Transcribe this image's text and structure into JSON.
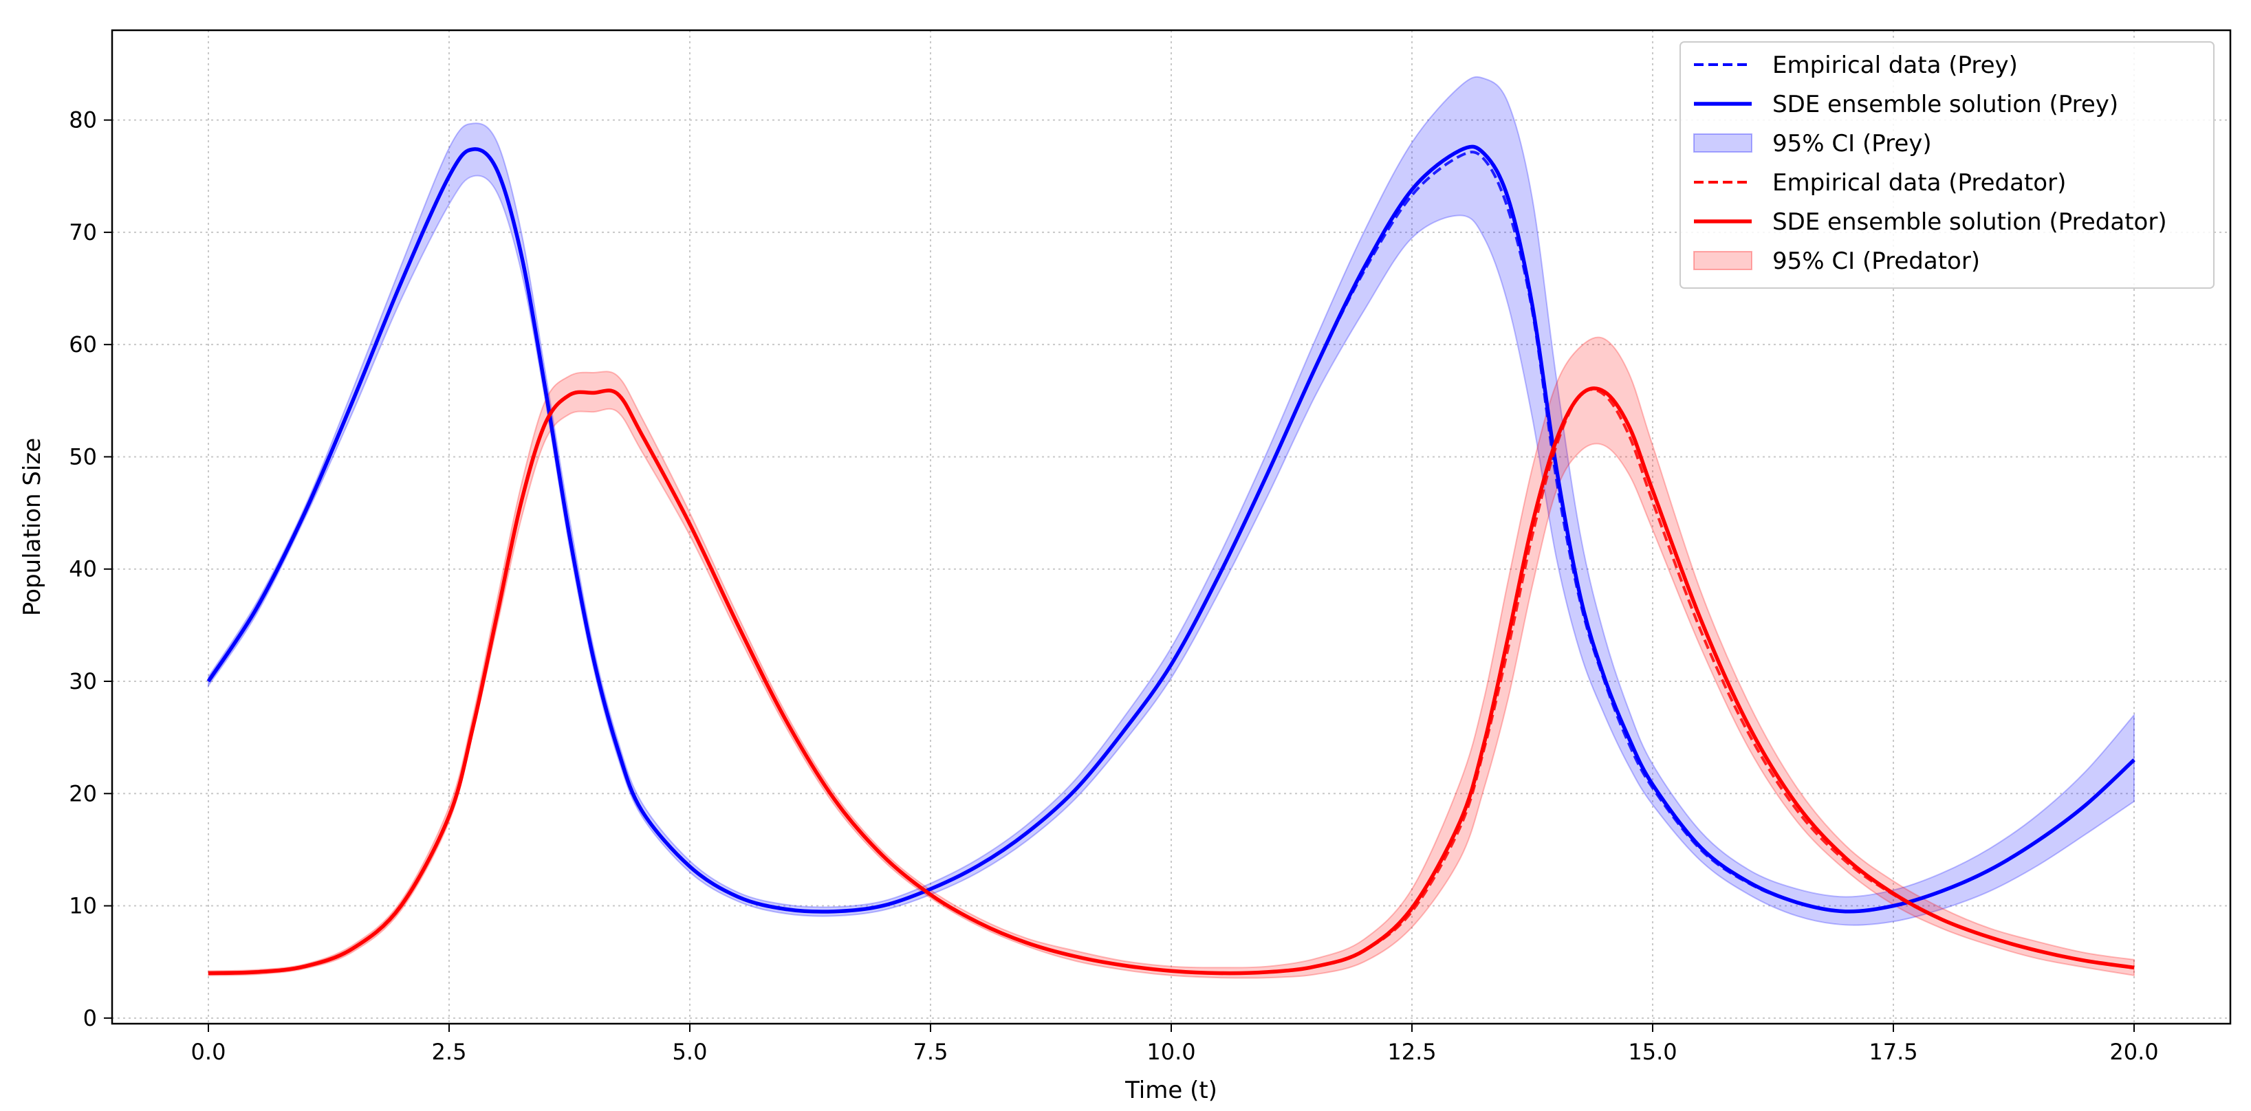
{
  "chart_data": {
    "type": "line",
    "title": "",
    "xlabel": "Time (t)",
    "ylabel": "Population Size",
    "xlim": [
      -1.0,
      21.0
    ],
    "ylim": [
      -0.5,
      88.0
    ],
    "xticks": [
      0.0,
      2.5,
      5.0,
      7.5,
      10.0,
      12.5,
      15.0,
      17.5,
      20.0
    ],
    "xtick_labels": [
      "0.0",
      "2.5",
      "5.0",
      "7.5",
      "10.0",
      "12.5",
      "15.0",
      "17.5",
      "20.0"
    ],
    "yticks": [
      0,
      10,
      20,
      30,
      40,
      50,
      60,
      70,
      80
    ],
    "ytick_labels": [
      "0",
      "10",
      "20",
      "30",
      "40",
      "50",
      "60",
      "70",
      "80"
    ],
    "grid": true,
    "legend_position": "top-right",
    "x": [
      0,
      0.5,
      1.0,
      1.5,
      2.0,
      2.5,
      2.75,
      3.0,
      3.25,
      3.5,
      3.75,
      4.0,
      4.25,
      4.5,
      5.0,
      5.5,
      6.0,
      6.5,
      7.0,
      7.5,
      8.0,
      8.5,
      9.0,
      9.5,
      10.0,
      10.5,
      11.0,
      11.5,
      12.0,
      12.5,
      13.0,
      13.25,
      13.5,
      13.75,
      14.0,
      14.25,
      14.5,
      14.75,
      15.0,
      15.5,
      16.0,
      16.5,
      17.0,
      17.5,
      18.0,
      18.5,
      19.0,
      19.5,
      20.0
    ],
    "series": [
      {
        "name": "Empirical data (Prey)",
        "kind": "line",
        "style": "dashed",
        "color": "#0000ff",
        "values": [
          30,
          36.5,
          45,
          55,
          65.5,
          75,
          77.4,
          75.5,
          68,
          56,
          43,
          32,
          24,
          18.5,
          13.5,
          10.8,
          9.7,
          9.5,
          10,
          11.5,
          13.6,
          16.5,
          20.3,
          25.5,
          31.5,
          39.5,
          48.5,
          58,
          66.5,
          73.3,
          76.8,
          76.5,
          72,
          63,
          48,
          37,
          30,
          24.5,
          20.5,
          15,
          12,
          10.3,
          9.5,
          10,
          11.3,
          13.2,
          15.8,
          19,
          23
        ]
      },
      {
        "name": "SDE ensemble solution (Prey)",
        "kind": "line",
        "style": "solid",
        "color": "#0000ff",
        "values": [
          30,
          36.5,
          45,
          55,
          65.5,
          75,
          77.4,
          75.5,
          68,
          56,
          43,
          32,
          24,
          18.5,
          13.5,
          10.8,
          9.7,
          9.5,
          10,
          11.5,
          13.6,
          16.5,
          20.3,
          25.5,
          31.5,
          39.5,
          48.5,
          58,
          66.8,
          73.8,
          77.3,
          77,
          73,
          63.5,
          49,
          37.5,
          30.3,
          25,
          20.8,
          15.2,
          12.1,
          10.3,
          9.5,
          10,
          11.3,
          13.2,
          15.8,
          19,
          23
        ]
      },
      {
        "name": "95% CI (Prey)",
        "kind": "band",
        "color": "#0000ff",
        "lower": [
          29.6,
          36,
          44.5,
          54,
          64,
          72.5,
          75,
          73.5,
          66.5,
          55,
          42,
          31.2,
          23.3,
          18,
          13,
          10.4,
          9.3,
          9.1,
          9.6,
          11,
          13,
          15.8,
          19.5,
          24.5,
          30.3,
          38,
          46.5,
          55.5,
          63,
          69.5,
          71.5,
          69.5,
          63.5,
          53.5,
          41,
          32.5,
          27,
          22.5,
          19,
          14,
          11,
          9.1,
          8.3,
          8.6,
          9.7,
          11.3,
          13.6,
          16.4,
          19.3
        ],
        "upper": [
          30.4,
          37,
          45.5,
          56,
          67,
          77.5,
          79.7,
          78,
          70,
          57.5,
          44.5,
          33,
          24.8,
          19.2,
          14,
          11.2,
          10.1,
          9.9,
          10.4,
          12,
          14.2,
          17.2,
          21.2,
          26.7,
          33,
          41.2,
          50.5,
          60.5,
          70,
          78,
          83,
          83.7,
          81.5,
          73,
          57,
          43,
          34,
          27.5,
          22.6,
          16.6,
          13.2,
          11.5,
          10.8,
          11.4,
          12.9,
          15.1,
          18.1,
          22,
          27
        ]
      },
      {
        "name": "Empirical data (Predator)",
        "kind": "line",
        "style": "dashed",
        "color": "#ff0000",
        "values": [
          4,
          4.1,
          4.6,
          6.2,
          10,
          18,
          26,
          36,
          46,
          53,
          55.5,
          55.7,
          55.6,
          52,
          44,
          35,
          26.5,
          19.5,
          14.5,
          11,
          8.5,
          6.7,
          5.5,
          4.7,
          4.2,
          4,
          4.1,
          4.6,
          6,
          9.5,
          17,
          24,
          33,
          43,
          51,
          55.5,
          55.5,
          52,
          46,
          34.5,
          25.3,
          18.5,
          14,
          11,
          8.8,
          7.2,
          6,
          5.1,
          4.5
        ]
      },
      {
        "name": "SDE ensemble solution (Predator)",
        "kind": "line",
        "style": "solid",
        "color": "#ff0000",
        "values": [
          4,
          4.1,
          4.6,
          6.2,
          10,
          18,
          26,
          36,
          46,
          53,
          55.5,
          55.7,
          55.6,
          52,
          44,
          35,
          26.5,
          19.5,
          14.5,
          11,
          8.5,
          6.7,
          5.5,
          4.7,
          4.2,
          4,
          4.1,
          4.6,
          6,
          9.8,
          17.5,
          24.5,
          34,
          44,
          51.5,
          55.5,
          55.8,
          52.8,
          47,
          35.5,
          26,
          19,
          14.3,
          11.1,
          8.8,
          7.2,
          6,
          5.1,
          4.5
        ]
      },
      {
        "name": "95% CI (Predator)",
        "kind": "band",
        "color": "#ff0000",
        "lower": [
          3.8,
          3.9,
          4.4,
          5.9,
          9.6,
          17.5,
          25.5,
          35,
          44.5,
          51.5,
          53.8,
          54,
          54,
          50.5,
          43,
          34.2,
          25.9,
          19,
          14.1,
          10.7,
          8.2,
          6.4,
          5.1,
          4.3,
          3.8,
          3.6,
          3.6,
          3.9,
          5,
          8.1,
          14.2,
          20.5,
          28.5,
          38.5,
          47,
          50.5,
          51,
          48.5,
          43.5,
          33,
          24,
          17.5,
          13.2,
          10.1,
          8,
          6.5,
          5.3,
          4.5,
          3.8
        ],
        "upper": [
          4.2,
          4.3,
          4.8,
          6.5,
          10.4,
          18.8,
          27,
          37.3,
          47.5,
          55,
          57.2,
          57.5,
          57.2,
          53.5,
          45,
          35.8,
          27.1,
          20,
          14.9,
          11.4,
          8.9,
          7.1,
          6,
          5.1,
          4.6,
          4.5,
          4.6,
          5.3,
          7,
          11.5,
          21,
          28.5,
          39,
          49,
          56.5,
          59.8,
          60.5,
          57.5,
          51,
          38,
          28,
          20.5,
          15.4,
          12.2,
          9.8,
          8,
          6.8,
          5.8,
          5.2
        ]
      }
    ],
    "legend": [
      {
        "label": "Empirical data (Prey)",
        "kind": "dashed",
        "color": "#0000ff"
      },
      {
        "label": "SDE ensemble solution (Prey)",
        "kind": "solid",
        "color": "#0000ff"
      },
      {
        "label": "95% CI (Prey)",
        "kind": "band",
        "color": "#0000ff"
      },
      {
        "label": "Empirical data (Predator)",
        "kind": "dashed",
        "color": "#ff0000"
      },
      {
        "label": "SDE ensemble solution (Predator)",
        "kind": "solid",
        "color": "#ff0000"
      },
      {
        "label": "95% CI (Predator)",
        "kind": "band",
        "color": "#ff0000"
      }
    ]
  }
}
